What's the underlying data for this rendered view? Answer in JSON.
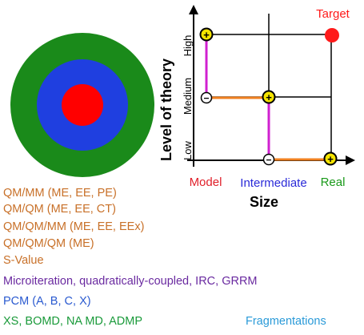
{
  "target": {
    "colors": [
      "#1a8a1a",
      "#1f3fe0",
      "#ff0000"
    ],
    "rings": [
      "outer-green-ring",
      "middle-blue-ring",
      "inner-red-core"
    ]
  },
  "diagram": {
    "target_label": "Target",
    "y_axis_title": "Level of theory",
    "y_levels": [
      "Low",
      "Medium",
      "High"
    ],
    "x_axis_title": "Size",
    "x_levels": [
      "Model",
      "Intermediate",
      "Real"
    ],
    "symbols": {
      "plus": "+",
      "minus": "−"
    },
    "colors": {
      "model": "#e0202a",
      "intermediate": "#2a2ad8",
      "real": "#1a9a1a",
      "target": "#ff1a1a",
      "vertical_path": "#d020d0",
      "horizontal_path": "#f08020",
      "grid": "#000000"
    }
  },
  "methods": [
    {
      "text": "QM/MM (ME, EE, PE)",
      "color": "#c87028"
    },
    {
      "text": "QM/QM (ME, EE, CT)",
      "color": "#c87028"
    },
    {
      "text": "QM/QM/MM (ME, EE, EEx)",
      "color": "#c87028"
    },
    {
      "text": "QM/QM/QM (ME)",
      "color": "#c87028"
    },
    {
      "text": "S-Value",
      "color": "#c87028"
    },
    {
      "text": "Microiteration, quadratically-coupled, IRC, GRRM",
      "color": "#6a2aa0"
    },
    {
      "text": "PCM (A, B, C, X)",
      "color": "#2a5ad0"
    },
    {
      "text": "XS, BOMD, NA MD, ADMP",
      "color": "#1a9a3a"
    }
  ],
  "fragmentations": {
    "text": "Fragmentations",
    "color": "#2a9ad8"
  }
}
